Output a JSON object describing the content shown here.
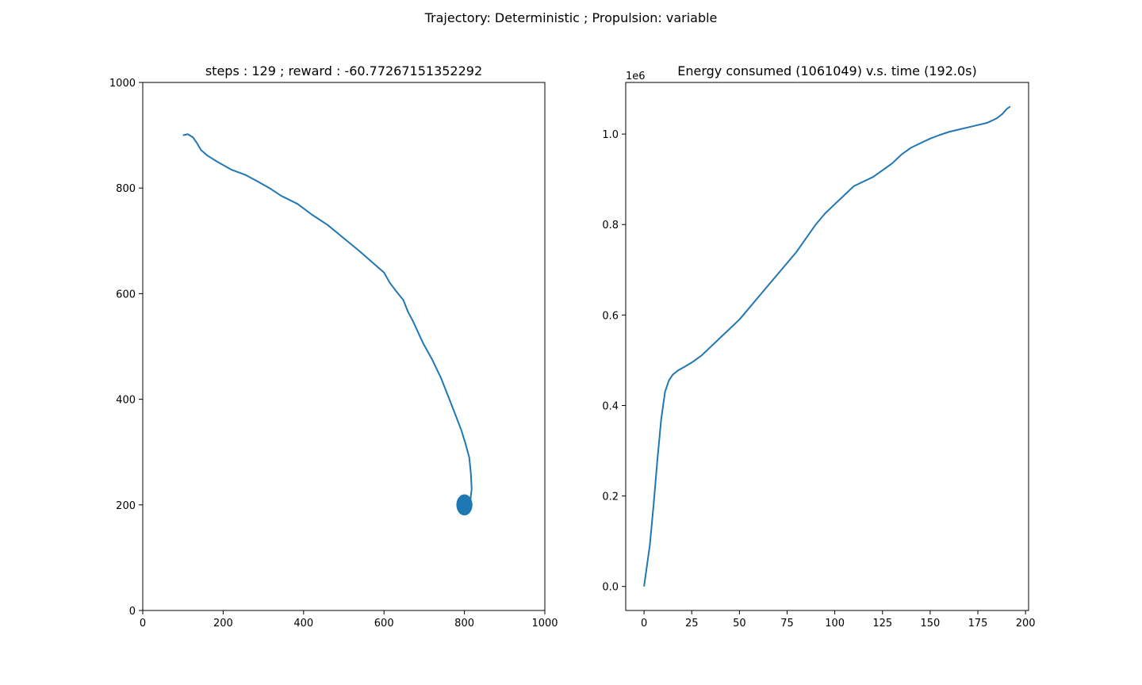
{
  "suptitle": "Trajectory: Deterministic ; Propulsion: variable",
  "chart_data": [
    {
      "type": "line",
      "title": "steps : 129 ; reward : -60.77267151352292",
      "xlabel": "",
      "ylabel": "",
      "xlim": [
        0,
        1000
      ],
      "ylim": [
        0,
        1000
      ],
      "xticks": [
        0,
        200,
        400,
        600,
        800,
        1000
      ],
      "yticks": [
        0,
        200,
        400,
        600,
        800,
        1000
      ],
      "color": "#1f77b4",
      "series": [
        {
          "x": [
            100,
            112,
            125,
            135,
            145,
            160,
            185,
            220,
            255,
            280,
            315,
            345,
            385,
            420,
            460,
            500,
            540,
            570,
            600,
            615,
            630,
            648,
            660,
            672,
            684,
            698,
            720,
            742,
            760,
            778,
            793,
            803,
            812,
            816,
            818,
            815,
            806
          ],
          "y": [
            900,
            902,
            896,
            885,
            872,
            862,
            850,
            835,
            825,
            815,
            800,
            785,
            770,
            750,
            730,
            705,
            680,
            660,
            640,
            620,
            605,
            588,
            565,
            548,
            528,
            505,
            475,
            440,
            405,
            370,
            340,
            315,
            290,
            260,
            230,
            210,
            203
          ]
        }
      ],
      "markers": [
        {
          "x": 800,
          "y": 200,
          "rx": 20,
          "ry": 20
        }
      ]
    },
    {
      "type": "line",
      "title": "Energy consumed (1061049) v.s. time (192.0s)",
      "xlabel": "",
      "ylabel": "",
      "offset_text": "1e6",
      "xlim": [
        -9.6,
        201.6
      ],
      "ylim": [
        -0.05305,
        1.1141
      ],
      "xticks": [
        0,
        25,
        50,
        75,
        100,
        125,
        150,
        175,
        200
      ],
      "yticks": [
        0.0,
        0.2,
        0.4,
        0.6,
        0.8,
        1.0
      ],
      "ytick_labels": [
        "0.0",
        "0.2",
        "0.4",
        "0.6",
        "0.8",
        "1.0"
      ],
      "color": "#1f77b4",
      "series": [
        {
          "x": [
            0,
            3,
            5,
            7,
            9,
            11,
            13,
            15,
            18,
            21,
            25,
            30,
            35,
            40,
            45,
            50,
            55,
            60,
            65,
            70,
            75,
            80,
            85,
            90,
            95,
            100,
            105,
            110,
            115,
            120,
            125,
            130,
            135,
            140,
            145,
            150,
            155,
            160,
            165,
            170,
            175,
            180,
            185,
            188,
            190,
            192
          ],
          "y": [
            0.0,
            0.09,
            0.18,
            0.28,
            0.37,
            0.43,
            0.455,
            0.468,
            0.478,
            0.485,
            0.495,
            0.51,
            0.53,
            0.55,
            0.57,
            0.59,
            0.615,
            0.64,
            0.665,
            0.69,
            0.715,
            0.74,
            0.77,
            0.8,
            0.825,
            0.845,
            0.865,
            0.885,
            0.895,
            0.905,
            0.92,
            0.935,
            0.955,
            0.97,
            0.98,
            0.99,
            0.998,
            1.005,
            1.01,
            1.015,
            1.02,
            1.025,
            1.035,
            1.045,
            1.055,
            1.061049
          ]
        }
      ]
    }
  ]
}
